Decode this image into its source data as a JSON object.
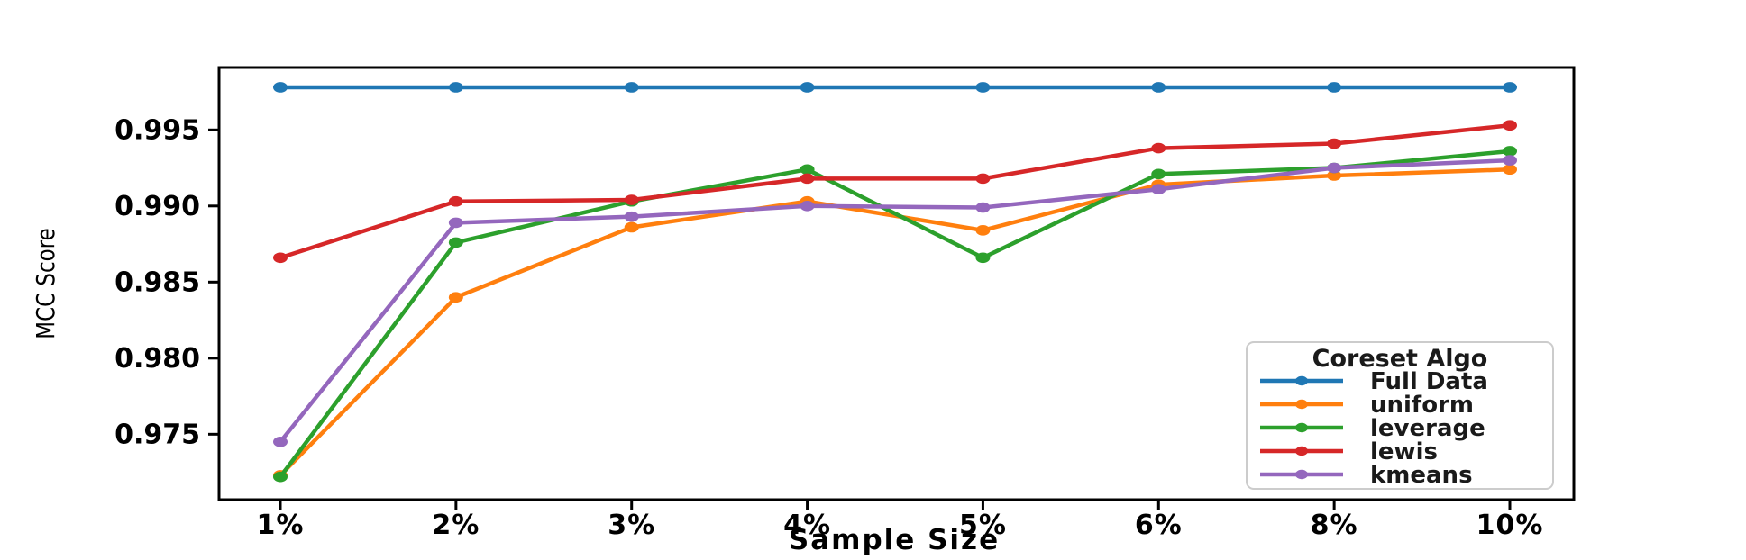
{
  "chart_data": {
    "type": "line",
    "categories": [
      "1%",
      "2%",
      "3%",
      "4%",
      "5%",
      "6%",
      "8%",
      "10%"
    ],
    "series": [
      {
        "name": "Full Data",
        "color": "#1f77b4",
        "values": [
          0.9978,
          0.9978,
          0.9978,
          0.9978,
          0.9978,
          0.9978,
          0.9978,
          0.9978
        ]
      },
      {
        "name": "uniform",
        "color": "#ff7f0e",
        "values": [
          0.9723,
          0.984,
          0.9886,
          0.9903,
          0.9884,
          0.9914,
          0.992,
          0.9924
        ]
      },
      {
        "name": "leverage",
        "color": "#2ca02c",
        "values": [
          0.9722,
          0.9876,
          0.9903,
          0.9924,
          0.9866,
          0.9921,
          0.9925,
          0.9936
        ]
      },
      {
        "name": "lewis",
        "color": "#d62728",
        "values": [
          0.9866,
          0.9903,
          0.9904,
          0.9918,
          0.9918,
          0.9938,
          0.9941,
          0.9953
        ]
      },
      {
        "name": "kmeans",
        "color": "#9467bd",
        "values": [
          0.9745,
          0.9889,
          0.9893,
          0.99,
          0.9899,
          0.9911,
          0.9925,
          0.993
        ]
      }
    ],
    "title": "",
    "xlabel": "Sample Size",
    "ylabel": "MCC Score",
    "ylim": [
      0.9707,
      0.9991
    ],
    "yticks": [
      {
        "value": 0.975,
        "label": "0.975"
      },
      {
        "value": 0.98,
        "label": "0.980"
      },
      {
        "value": 0.985,
        "label": "0.985"
      },
      {
        "value": 0.99,
        "label": "0.990"
      },
      {
        "value": 0.995,
        "label": "0.995"
      }
    ],
    "grid": false,
    "marker": "o",
    "legend": {
      "title": "Coreset Algo",
      "position": "lower right"
    },
    "colors": {
      "spine": "#000000",
      "legend_border": "#cccccc",
      "background": "#ffffff"
    }
  }
}
